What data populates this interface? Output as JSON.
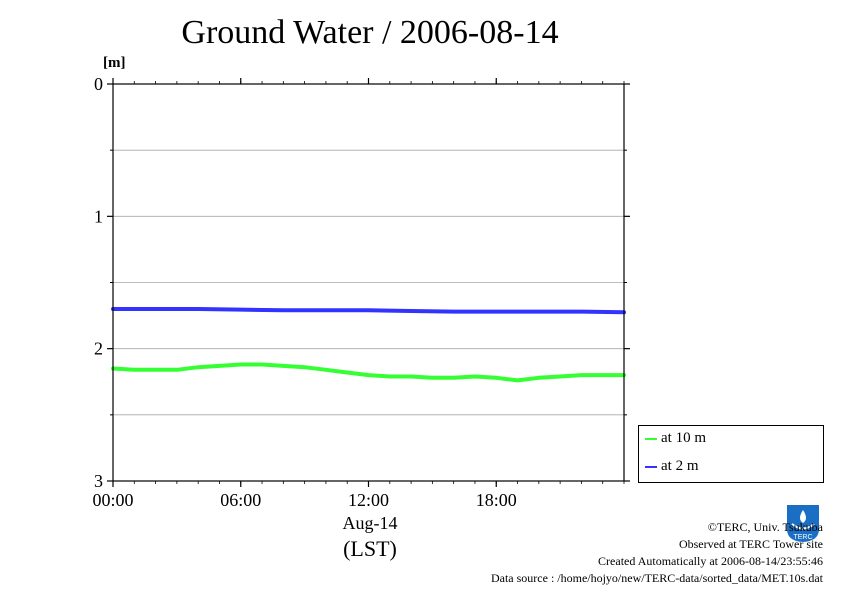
{
  "chart_data": {
    "type": "line",
    "title": "Ground Water / 2006-08-14",
    "ylabel": "[m]",
    "ylim": [
      3,
      0
    ],
    "y_ticks": [
      "0",
      "1",
      "2",
      "3"
    ],
    "y_minor_grid": [
      0.5,
      1.5,
      2.5
    ],
    "xlim_hours": [
      0,
      24
    ],
    "x_ticks": [
      {
        "hour": 0,
        "label": "00:00"
      },
      {
        "hour": 6,
        "label": "06:00"
      },
      {
        "hour": 12,
        "label": "12:00"
      },
      {
        "hour": 18,
        "label": "18:00"
      }
    ],
    "xlabel_date": "Aug-14",
    "xlabel_tz": "(LST)",
    "grid": true,
    "legend_position": "bottom-right-outside",
    "series": [
      {
        "name": "at 10 m",
        "color": "#33ff33",
        "x": [
          0,
          1,
          2,
          3,
          4,
          5,
          6,
          7,
          8,
          9,
          10,
          11,
          12,
          13,
          14,
          15,
          16,
          17,
          18,
          19,
          20,
          21,
          22,
          23,
          24
        ],
        "y": [
          2.15,
          2.16,
          2.16,
          2.16,
          2.14,
          2.13,
          2.12,
          2.12,
          2.13,
          2.14,
          2.16,
          2.18,
          2.2,
          2.21,
          2.21,
          2.22,
          2.22,
          2.21,
          2.22,
          2.24,
          2.22,
          2.21,
          2.2,
          2.2,
          2.2
        ]
      },
      {
        "name": "at 2 m",
        "color": "#3333ff",
        "x": [
          0,
          2,
          4,
          6,
          8,
          10,
          12,
          14,
          16,
          18,
          20,
          22,
          24
        ],
        "y": [
          1.7,
          1.7,
          1.7,
          1.705,
          1.71,
          1.71,
          1.71,
          1.715,
          1.72,
          1.72,
          1.72,
          1.72,
          1.725
        ]
      }
    ]
  },
  "footer": {
    "line1": "©TERC, Univ. Tsukuba",
    "line2": "Observed at TERC Tower site",
    "line3": "Created Automatically at 2006-08-14/23:55:46",
    "line4": "Data source : /home/hojyo/new/TERC-data/sorted_data/MET.10s.dat"
  },
  "logo": {
    "icon": "terc-logo-icon",
    "text": "TERC",
    "color": "#1a6fc4"
  }
}
